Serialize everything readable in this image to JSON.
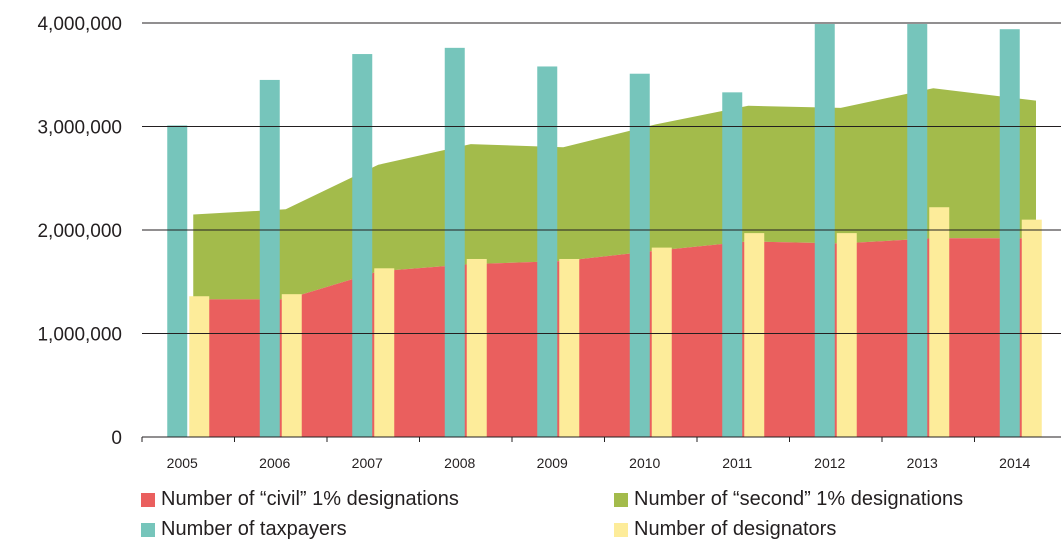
{
  "chart_data": {
    "type": "bar",
    "categories": [
      "2005",
      "2006",
      "2007",
      "2008",
      "2009",
      "2010",
      "2011",
      "2012",
      "2013",
      "2014"
    ],
    "ylim": [
      0,
      4000000
    ],
    "y_ticks": [
      {
        "value": 0,
        "label": "0"
      },
      {
        "value": 1000000,
        "label": "1,000,000"
      },
      {
        "value": 2000000,
        "label": "2,000,000"
      },
      {
        "value": 3000000,
        "label": "3,000,000"
      },
      {
        "value": 4000000,
        "label": "4,000,000"
      }
    ],
    "grid": true,
    "legend_position": "bottom",
    "series": [
      {
        "name": "Number of “civil” 1% designations",
        "kind": "area",
        "color": "#ea5f5e",
        "values": [
          1330000,
          1330000,
          1600000,
          1670000,
          1700000,
          1800000,
          1890000,
          1870000,
          1920000,
          1920000
        ]
      },
      {
        "name": "Number of “second” 1% designations",
        "kind": "area-top",
        "color": "#a3bb4b",
        "values": [
          2150000,
          2200000,
          2630000,
          2830000,
          2800000,
          3020000,
          3200000,
          3180000,
          3370000,
          3250000
        ]
      },
      {
        "name": "Number of taxpayers",
        "kind": "bar",
        "color": "#76c5bb",
        "values": [
          3010000,
          3450000,
          3700000,
          3760000,
          3580000,
          3510000,
          3330000,
          3990000,
          3990000,
          3940000
        ]
      },
      {
        "name": "Number of designators",
        "kind": "bar",
        "color": "#fdec9a",
        "values": [
          1360000,
          1380000,
          1630000,
          1720000,
          1720000,
          1830000,
          1970000,
          1970000,
          2220000,
          2100000
        ]
      }
    ]
  },
  "legend": [
    {
      "label": "Number of “civil” 1% designations",
      "color": "#ea5f5e"
    },
    {
      "label": "Number of “second” 1% designations",
      "color": "#a3bb4b"
    },
    {
      "label": "Number of taxpayers",
      "color": "#76c5bb"
    },
    {
      "label": "Number of designators",
      "color": "#fdec9a"
    }
  ]
}
